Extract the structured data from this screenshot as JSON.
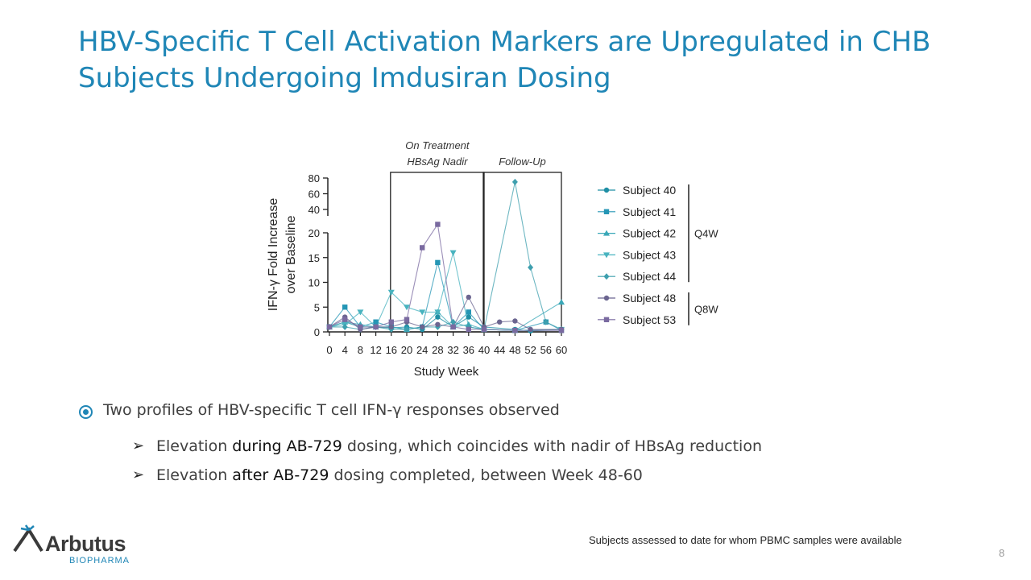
{
  "slide": {
    "title": "HBV-Specific T Cell Activation Markers are Upregulated in CHB Subjects Undergoing Imdusiran Dosing",
    "bullet_main": "Two profiles of HBV-specific T cell IFN-γ responses observed",
    "sub1": {
      "pre": "Elevation ",
      "bold": "during AB-729",
      "post": " dosing, which coincides with nadir of HBsAg reduction"
    },
    "sub2": {
      "pre": "Elevation ",
      "bold": "after AB-729",
      "post": " dosing completed, between Week 48-60"
    },
    "footnote": "Subjects assessed to date for whom PBMC samples were available",
    "page_number": "8",
    "logo_name": "Arbutus",
    "logo_sub": "BIOPHARMA"
  },
  "chart_data": {
    "type": "line",
    "title": "",
    "xlabel": "Study Week",
    "ylabel": "IFN-γ Fold Increase over Baseline",
    "xlim": [
      0,
      60
    ],
    "x_ticks": [
      0,
      4,
      8,
      12,
      16,
      20,
      24,
      28,
      32,
      36,
      40,
      44,
      48,
      52,
      56,
      60
    ],
    "y_ticks_lower": [
      0,
      5,
      10,
      15,
      20
    ],
    "y_ticks_upper": [
      40,
      60,
      80
    ],
    "y_break": [
      20,
      40
    ],
    "regions": [
      {
        "label_lines": [
          "On Treatment",
          "HBsAg Nadir"
        ],
        "x_range": [
          16,
          40
        ]
      },
      {
        "label_lines": [
          "Follow-Up"
        ],
        "x_range": [
          40,
          60
        ]
      }
    ],
    "groups": [
      {
        "label": "Q4W",
        "series": [
          "Subject 40",
          "Subject 41",
          "Subject 42",
          "Subject 43",
          "Subject 44"
        ]
      },
      {
        "label": "Q8W",
        "series": [
          "Subject 48",
          "Subject 53"
        ]
      }
    ],
    "series": [
      {
        "name": "Subject 40",
        "marker": "circle",
        "color": "#1f8fa5",
        "points": [
          [
            0,
            1
          ],
          [
            4,
            2
          ],
          [
            8,
            1
          ],
          [
            12,
            1
          ],
          [
            16,
            0.8
          ],
          [
            20,
            1
          ],
          [
            24,
            0.5
          ],
          [
            28,
            3
          ],
          [
            32,
            1
          ],
          [
            36,
            3
          ],
          [
            40,
            1
          ],
          [
            48,
            0.5
          ],
          [
            52,
            0.2
          ],
          [
            60,
            0.5
          ]
        ]
      },
      {
        "name": "Subject 41",
        "marker": "square",
        "color": "#2596b5",
        "points": [
          [
            0,
            1
          ],
          [
            4,
            5
          ],
          [
            8,
            1
          ],
          [
            12,
            2
          ],
          [
            16,
            1
          ],
          [
            20,
            0.5
          ],
          [
            24,
            1
          ],
          [
            28,
            14
          ],
          [
            32,
            1
          ],
          [
            36,
            4
          ],
          [
            40,
            0.5
          ],
          [
            48,
            0.3
          ],
          [
            56,
            2
          ],
          [
            60,
            0.3
          ]
        ]
      },
      {
        "name": "Subject 42",
        "marker": "triangle-up",
        "color": "#3aa8b8",
        "points": [
          [
            0,
            1
          ],
          [
            4,
            2
          ],
          [
            8,
            1.5
          ],
          [
            12,
            1
          ],
          [
            16,
            1
          ],
          [
            20,
            0.5
          ],
          [
            24,
            1
          ],
          [
            28,
            4
          ],
          [
            32,
            1
          ],
          [
            36,
            1.5
          ],
          [
            40,
            0.5
          ],
          [
            48,
            0.3
          ],
          [
            60,
            6
          ]
        ]
      },
      {
        "name": "Subject 43",
        "marker": "triangle-down",
        "color": "#48b3bf",
        "points": [
          [
            0,
            1
          ],
          [
            4,
            1.5
          ],
          [
            8,
            4
          ],
          [
            12,
            1
          ],
          [
            16,
            8
          ],
          [
            20,
            5
          ],
          [
            24,
            4
          ],
          [
            28,
            4
          ],
          [
            32,
            16
          ],
          [
            36,
            1
          ],
          [
            40,
            0.5
          ],
          [
            48,
            0.3
          ],
          [
            60,
            0.5
          ]
        ]
      },
      {
        "name": "Subject 44",
        "marker": "diamond",
        "color": "#3e9fae",
        "points": [
          [
            0,
            1
          ],
          [
            4,
            1
          ],
          [
            8,
            0.5
          ],
          [
            12,
            1
          ],
          [
            16,
            0.5
          ],
          [
            20,
            0.5
          ],
          [
            24,
            1
          ],
          [
            28,
            1
          ],
          [
            32,
            2
          ],
          [
            36,
            1
          ],
          [
            40,
            0.5
          ],
          [
            48,
            75
          ],
          [
            52,
            13
          ],
          [
            56,
            2
          ],
          [
            60,
            0.5
          ]
        ]
      },
      {
        "name": "Subject 48",
        "marker": "circle",
        "color": "#6b6590",
        "points": [
          [
            0,
            1
          ],
          [
            4,
            3
          ],
          [
            8,
            0.5
          ],
          [
            12,
            1
          ],
          [
            16,
            1
          ],
          [
            20,
            2
          ],
          [
            24,
            1
          ],
          [
            28,
            1.5
          ],
          [
            32,
            1
          ],
          [
            36,
            7
          ],
          [
            40,
            1
          ],
          [
            44,
            2
          ],
          [
            48,
            2.2
          ],
          [
            52,
            0.5
          ],
          [
            60,
            0.5
          ]
        ]
      },
      {
        "name": "Subject 53",
        "marker": "square",
        "color": "#7a6aa0",
        "points": [
          [
            0,
            1
          ],
          [
            4,
            2.5
          ],
          [
            8,
            1
          ],
          [
            12,
            1
          ],
          [
            16,
            2
          ],
          [
            20,
            2.5
          ],
          [
            24,
            17
          ],
          [
            28,
            34
          ],
          [
            32,
            1
          ],
          [
            36,
            0.5
          ],
          [
            40,
            0.5
          ],
          [
            48,
            0.3
          ],
          [
            60,
            0.3
          ]
        ]
      }
    ],
    "grid": false,
    "legend_position": "right"
  }
}
